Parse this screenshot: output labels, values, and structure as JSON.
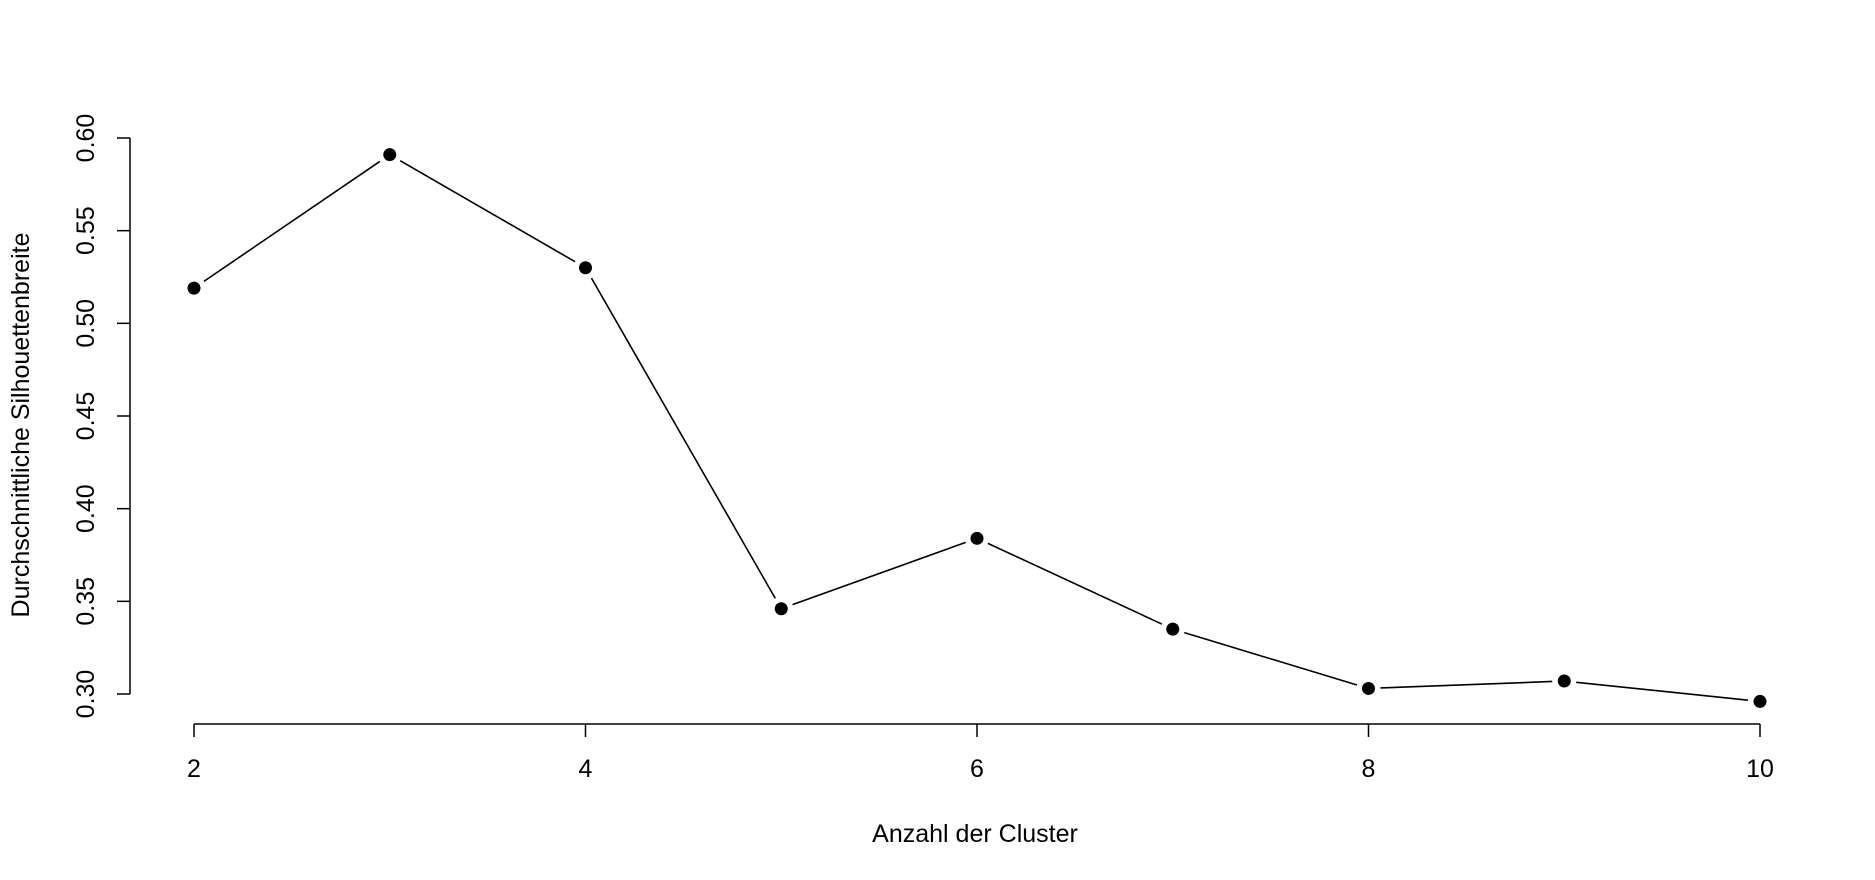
{
  "chart_data": {
    "type": "line",
    "title": "",
    "xlabel": "Anzahl der Cluster",
    "ylabel": "Durchschnittliche Silhouettenbreite",
    "x": [
      2,
      3,
      4,
      5,
      6,
      7,
      8,
      9,
      10
    ],
    "series": [
      {
        "values": [
          0.519,
          0.591,
          0.53,
          0.346,
          0.384,
          0.335,
          0.303,
          0.307,
          0.296
        ]
      }
    ],
    "xticks": [
      2,
      4,
      6,
      8,
      10
    ],
    "xtick_labels": [
      "2",
      "4",
      "6",
      "8",
      "10"
    ],
    "yticks": [
      0.3,
      0.35,
      0.4,
      0.45,
      0.5,
      0.55,
      0.6
    ],
    "ytick_labels": [
      "0.30",
      "0.35",
      "0.40",
      "0.45",
      "0.50",
      "0.55",
      "0.60"
    ],
    "xlim": [
      2,
      10
    ],
    "ylim": [
      0.3,
      0.6
    ],
    "grid": false,
    "marker": "filled-circle",
    "line_color": "#000000"
  }
}
